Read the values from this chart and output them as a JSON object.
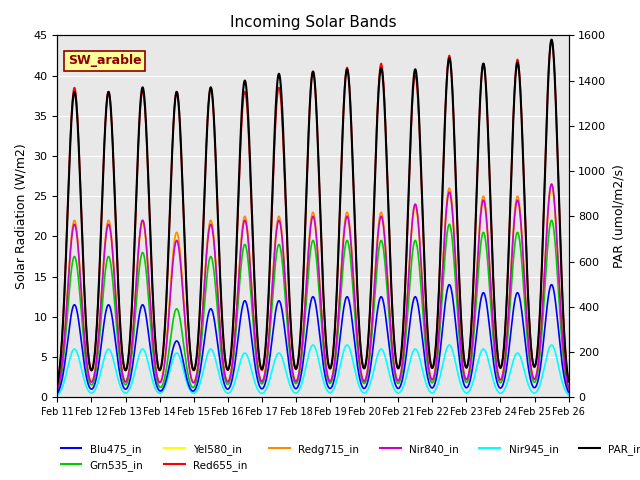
{
  "title": "Incoming Solar Bands",
  "ylabel_left": "Solar Radiation (W/m2)",
  "ylabel_right": "PAR (umol/m2/s)",
  "ylim_left": [
    0,
    45
  ],
  "ylim_right": [
    0,
    1600
  ],
  "yticks_left": [
    0,
    5,
    10,
    15,
    20,
    25,
    30,
    35,
    40,
    45
  ],
  "yticks_right": [
    0,
    200,
    400,
    600,
    800,
    1000,
    1200,
    1400,
    1600
  ],
  "xtick_labels": [
    "Feb 11",
    "Feb 12",
    "Feb 13",
    "Feb 14",
    "Feb 15",
    "Feb 16",
    "Feb 17",
    "Feb 18",
    "Feb 19",
    "Feb 20",
    "Feb 21",
    "Feb 22",
    "Feb 23",
    "Feb 24",
    "Feb 25",
    "Feb 26"
  ],
  "n_days": 15,
  "annotation_text": "SW_arable",
  "annotation_color": "#8B0000",
  "annotation_bg": "#FFFF99",
  "annotation_border": "#8B0000",
  "peaks_left": {
    "Blu475_in": [
      11.5,
      11.5,
      11.5,
      7.0,
      11.0,
      12.0,
      12.0,
      12.5,
      12.5,
      12.5,
      12.5,
      14.0,
      13.0,
      13.0,
      14.0
    ],
    "Grn535_in": [
      17.5,
      17.5,
      18.0,
      11.0,
      17.5,
      19.0,
      19.0,
      19.5,
      19.5,
      19.5,
      19.5,
      21.5,
      20.5,
      20.5,
      22.0
    ],
    "Yel580_in": [
      21.5,
      21.5,
      21.5,
      20.5,
      21.5,
      22.0,
      22.0,
      22.5,
      22.5,
      22.5,
      23.5,
      25.5,
      24.5,
      24.5,
      26.0
    ],
    "Red655_in": [
      38.5,
      38.0,
      38.0,
      38.0,
      38.5,
      38.0,
      38.5,
      40.5,
      41.0,
      41.5,
      40.0,
      42.5,
      41.5,
      42.0,
      44.5
    ],
    "Redg715_in": [
      22.0,
      22.0,
      22.0,
      20.5,
      22.0,
      22.5,
      22.5,
      23.0,
      23.0,
      23.0,
      24.0,
      26.0,
      25.0,
      25.0,
      26.5
    ],
    "Nir840_in": [
      21.5,
      21.5,
      22.0,
      19.5,
      21.5,
      22.0,
      22.0,
      22.5,
      22.5,
      22.5,
      24.0,
      25.5,
      24.5,
      24.5,
      26.5
    ],
    "Nir945_in": [
      6.0,
      6.0,
      6.0,
      5.5,
      6.0,
      5.5,
      5.5,
      6.5,
      6.5,
      6.0,
      6.0,
      6.5,
      6.0,
      5.5,
      6.5
    ]
  },
  "peaks_PAR": [
    1350,
    1350,
    1370,
    1350,
    1370,
    1400,
    1430,
    1440,
    1450,
    1455,
    1450,
    1500,
    1475,
    1480,
    1580
  ],
  "colors": {
    "Blu475_in": "#0000FF",
    "Grn535_in": "#00CC00",
    "Yel580_in": "#FFFF00",
    "Red655_in": "#FF0000",
    "Redg715_in": "#FF8C00",
    "Nir840_in": "#CC00CC",
    "Nir945_in": "#00FFFF",
    "PAR_in": "#000000"
  },
  "lws": {
    "Blu475_in": 1.2,
    "Grn535_in": 1.2,
    "Yel580_in": 1.2,
    "Red655_in": 1.2,
    "Redg715_in": 1.2,
    "Nir840_in": 1.2,
    "Nir945_in": 1.2,
    "PAR_in": 1.5
  },
  "plot_order": [
    "Nir945_in",
    "Yel580_in",
    "Grn535_in",
    "Redg715_in",
    "Nir840_in",
    "Blu475_in",
    "Red655_in",
    "PAR_in"
  ],
  "background_color": "#E8E8E8",
  "grid_color": "#FFFFFF",
  "fig_color": "#FFFFFF"
}
